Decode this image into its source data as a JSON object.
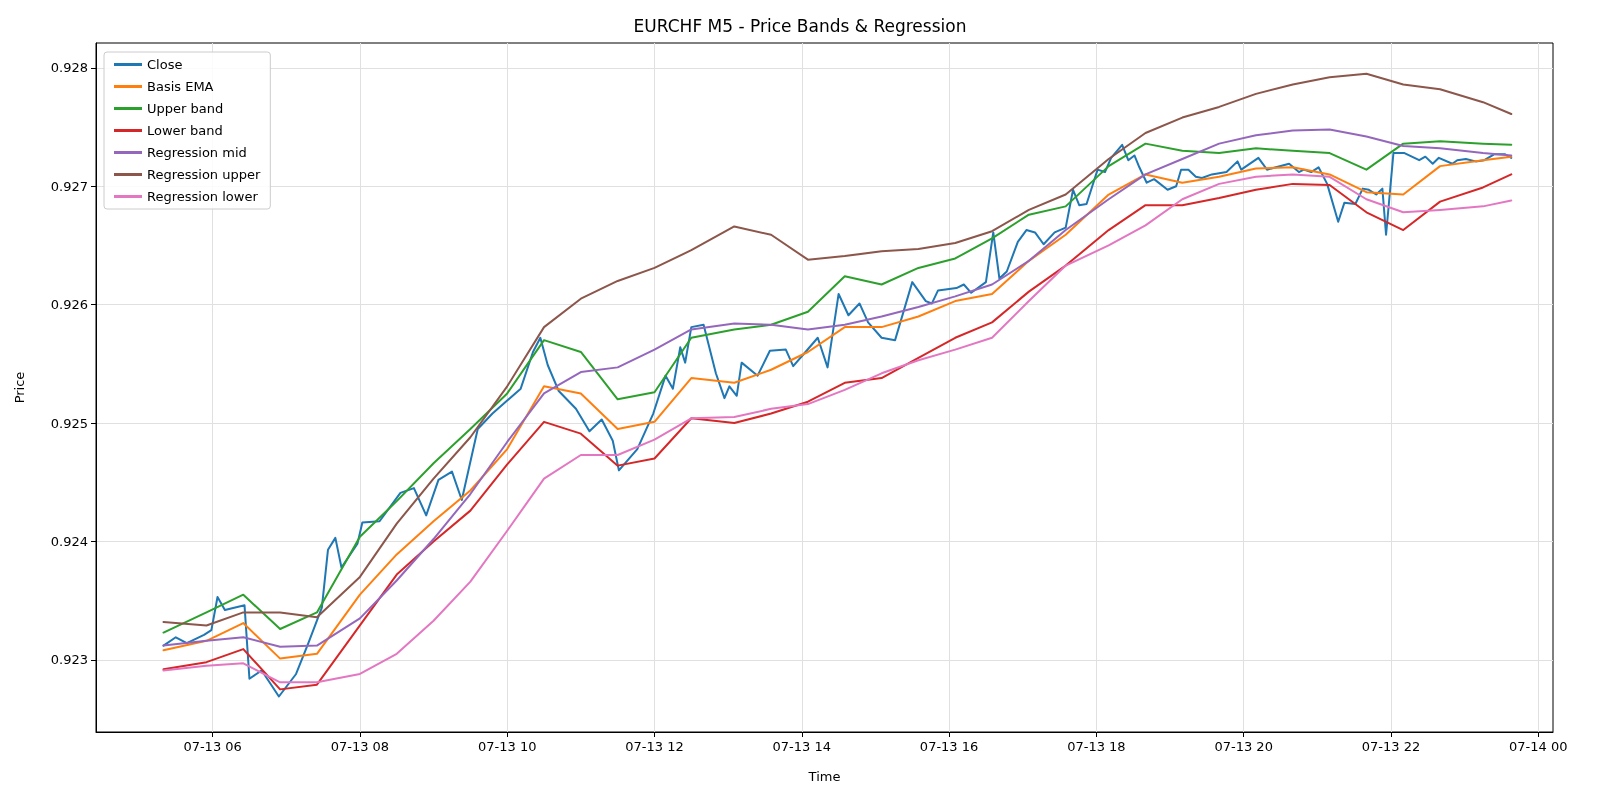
{
  "chart_data": {
    "type": "line",
    "title": "EURCHF M5 - Price Bands & Regression",
    "xlabel": "Time",
    "ylabel": "Price",
    "x": [
      "--07-13T05:20",
      "--07-13T05:55",
      "--07-13T06:25",
      "--07-13T06:55",
      "--07-13T07:25",
      "--07-13T08:00",
      "--07-13T08:30",
      "--07-13T09:00",
      "--07-13T09:30",
      "--07-13T10:00",
      "--07-13T10:30",
      "--07-13T11:00",
      "--07-13T11:30",
      "--07-13T12:00",
      "--07-13T12:30",
      "--07-13T13:05",
      "--07-13T13:35",
      "--07-13T14:05",
      "--07-13T14:35",
      "--07-13T15:05",
      "--07-13T15:35",
      "--07-13T16:05",
      "--07-13T16:35",
      "--07-13T17:05",
      "--07-13T17:35",
      "--07-13T18:10",
      "--07-13T18:40",
      "--07-13T19:10",
      "--07-13T19:40",
      "--07-13T20:10",
      "--07-13T20:40",
      "--07-13T21:10",
      "--07-13T21:40",
      "--07-13T22:10",
      "--07-13T22:40",
      "--07-13T23:15",
      "--07-13T23:38"
    ],
    "series": [
      {
        "name": "Close",
        "color": "#1f77b4",
        "x": [
          "--07-13T05:20",
          "--07-13T05:30",
          "--07-13T05:39",
          "--07-13T05:53",
          "--07-13T05:59",
          "--07-13T06:04",
          "--07-13T06:10",
          "--07-13T06:26",
          "--07-13T06:30",
          "--07-13T06:40",
          "--07-13T06:54",
          "--07-13T07:08",
          "--07-13T07:18",
          "--07-13T07:29",
          "--07-13T07:34",
          "--07-13T07:40",
          "--07-13T07:45",
          "--07-13T07:58",
          "--07-13T08:02",
          "--07-13T08:16",
          "--07-13T08:33",
          "--07-13T08:44",
          "--07-13T08:54",
          "--07-13T09:04",
          "--07-13T09:15",
          "--07-13T09:23",
          "--07-13T09:36",
          "--07-13T09:48",
          "--07-13T10:00",
          "--07-13T10:11",
          "--07-13T10:21",
          "--07-13T10:27",
          "--07-13T10:33",
          "--07-13T10:42",
          "--07-13T10:56",
          "--07-13T11:07",
          "--07-13T11:17",
          "--07-13T11:26",
          "--07-13T11:31",
          "--07-13T11:46",
          "--07-13T11:59",
          "--07-13T12:09",
          "--07-13T12:15",
          "--07-13T12:21",
          "--07-13T12:25",
          "--07-13T12:30",
          "--07-13T12:40",
          "--07-13T12:50",
          "--07-13T12:57",
          "--07-13T13:01",
          "--07-13T13:07",
          "--07-13T13:11",
          "--07-13T13:24",
          "--07-13T13:34",
          "--07-13T13:47",
          "--07-13T13:53",
          "--07-13T14:03",
          "--07-13T14:13",
          "--07-13T14:21",
          "--07-13T14:30",
          "--07-13T14:38",
          "--07-13T14:47",
          "--07-13T14:54",
          "--07-13T15:05",
          "--07-13T15:16",
          "--07-13T15:30",
          "--07-13T15:41",
          "--07-13T15:46",
          "--07-13T15:51",
          "--07-13T16:06",
          "--07-13T16:12",
          "--07-13T16:18",
          "--07-13T16:30",
          "--07-13T16:36",
          "--07-13T16:41",
          "--07-13T16:47",
          "--07-13T16:56",
          "--07-13T17:03",
          "--07-13T17:10",
          "--07-13T17:17",
          "--07-13T17:26",
          "--07-13T17:35",
          "--07-13T17:41",
          "--07-13T17:46",
          "--07-13T17:52",
          "--07-13T18:01",
          "--07-13T18:07",
          "--07-13T18:12",
          "--07-13T18:21",
          "--07-13T18:26",
          "--07-13T18:31",
          "--07-13T18:35",
          "--07-13T18:41",
          "--07-13T18:47",
          "--07-13T18:58",
          "--07-13T19:05",
          "--07-13T19:09",
          "--07-13T19:15",
          "--07-13T19:21",
          "--07-13T19:26",
          "--07-13T19:34",
          "--07-13T19:46",
          "--07-13T19:55",
          "--07-13T19:58",
          "--07-13T20:12",
          "--07-13T20:19",
          "--07-13T20:37",
          "--07-13T20:45",
          "--07-13T20:49",
          "--07-13T20:55",
          "--07-13T21:01",
          "--07-13T21:08",
          "--07-13T21:17",
          "--07-13T21:22",
          "--07-13T21:31",
          "--07-13T21:37",
          "--07-13T21:42",
          "--07-13T21:48",
          "--07-13T21:53",
          "--07-13T21:56",
          "--07-13T22:02",
          "--07-13T22:11",
          "--07-13T22:17",
          "--07-13T22:23",
          "--07-13T22:28",
          "--07-13T22:34",
          "--07-13T22:39",
          "--07-13T22:50",
          "--07-13T22:54",
          "--07-13T23:01",
          "--07-13T23:09",
          "--07-13T23:16",
          "--07-13T23:24",
          "--07-13T23:33",
          "--07-13T23:38"
        ],
        "values": [
          0.92312,
          0.92319,
          0.92314,
          0.92321,
          0.92325,
          0.92353,
          0.92342,
          0.92346,
          0.92284,
          0.92291,
          0.92269,
          0.92288,
          0.92314,
          0.92344,
          0.92393,
          0.92403,
          0.92378,
          0.92398,
          0.92416,
          0.92417,
          0.92441,
          0.92445,
          0.92422,
          0.92452,
          0.92459,
          0.92435,
          0.92495,
          0.92508,
          0.92519,
          0.92529,
          0.9256,
          0.92572,
          0.92549,
          0.92527,
          0.92512,
          0.92493,
          0.92503,
          0.92485,
          0.9246,
          0.92478,
          0.92508,
          0.9254,
          0.92529,
          0.92564,
          0.92551,
          0.92581,
          0.92583,
          0.92542,
          0.92521,
          0.92531,
          0.92523,
          0.92551,
          0.9254,
          0.92561,
          0.92562,
          0.92548,
          0.9256,
          0.92572,
          0.92547,
          0.92609,
          0.92591,
          0.92601,
          0.92585,
          0.92572,
          0.9257,
          0.92619,
          0.92603,
          0.92601,
          0.92612,
          0.92614,
          0.92617,
          0.9261,
          0.92619,
          0.92661,
          0.92622,
          0.92628,
          0.92653,
          0.92663,
          0.92661,
          0.92651,
          0.92661,
          0.92665,
          0.92697,
          0.92684,
          0.92685,
          0.92714,
          0.92712,
          0.92724,
          0.92735,
          0.92722,
          0.92726,
          0.92716,
          0.92703,
          0.92706,
          0.92697,
          0.927,
          0.92714,
          0.92714,
          0.92708,
          0.92707,
          0.9271,
          0.92712,
          0.92721,
          0.92714,
          0.92724,
          0.92714,
          0.92719,
          0.92712,
          0.92714,
          0.92712,
          0.92716,
          0.92702,
          0.9267,
          0.92686,
          0.92685,
          0.92698,
          0.92697,
          0.92693,
          0.92698,
          0.92659,
          0.92728,
          0.92728,
          0.92725,
          0.92722,
          0.92725,
          0.92719,
          0.92724,
          0.92719,
          0.92722,
          0.92723,
          0.92721,
          0.92722,
          0.92727,
          0.92727,
          0.92724
        ]
      },
      {
        "name": "Basis EMA",
        "color": "#ff7f0e",
        "values": [
          0.92308,
          0.92316,
          0.92331,
          0.92301,
          0.92305,
          0.92355,
          0.92389,
          0.92417,
          0.92443,
          0.92478,
          0.92531,
          0.92525,
          0.92495,
          0.92501,
          0.92538,
          0.92534,
          0.92545,
          0.9256,
          0.92581,
          0.92581,
          0.9259,
          0.92603,
          0.92609,
          0.92637,
          0.92659,
          0.92693,
          0.9271,
          0.92703,
          0.92708,
          0.92715,
          0.92716,
          0.9271,
          0.92695,
          0.92693,
          0.92717,
          0.92722,
          0.92725
        ]
      },
      {
        "name": "Upper band",
        "color": "#2ca02c",
        "values": [
          0.92323,
          0.9234,
          0.92355,
          0.92326,
          0.9234,
          0.92404,
          0.92434,
          0.92466,
          0.92495,
          0.92525,
          0.9257,
          0.9256,
          0.9252,
          0.92526,
          0.92572,
          0.92579,
          0.92583,
          0.92594,
          0.92624,
          0.92617,
          0.92631,
          0.92639,
          0.92656,
          0.92676,
          0.92683,
          0.92717,
          0.92736,
          0.9273,
          0.92728,
          0.92732,
          0.9273,
          0.92728,
          0.92714,
          0.92736,
          0.92738,
          0.92736,
          0.92735
        ]
      },
      {
        "name": "Lower band",
        "color": "#d62728",
        "values": [
          0.92292,
          0.92298,
          0.92309,
          0.92275,
          0.92279,
          0.92329,
          0.92372,
          0.924,
          0.92426,
          0.92465,
          0.92501,
          0.92491,
          0.92464,
          0.9247,
          0.92504,
          0.925,
          0.92508,
          0.92518,
          0.92534,
          0.92538,
          0.92555,
          0.92572,
          0.92585,
          0.92611,
          0.92633,
          0.92663,
          0.92684,
          0.92684,
          0.9269,
          0.92697,
          0.92702,
          0.92701,
          0.92678,
          0.92663,
          0.92687,
          0.92699,
          0.9271
        ]
      },
      {
        "name": "Regression mid",
        "color": "#9467bd",
        "values": [
          0.92312,
          0.92316,
          0.92319,
          0.92311,
          0.92312,
          0.92335,
          0.92367,
          0.92402,
          0.9244,
          0.92484,
          0.92525,
          0.92543,
          0.92547,
          0.92562,
          0.92579,
          0.92584,
          0.92583,
          0.92579,
          0.92583,
          0.9259,
          0.92598,
          0.92607,
          0.92617,
          0.92637,
          0.92663,
          0.92689,
          0.9271,
          0.92723,
          0.92736,
          0.92743,
          0.92747,
          0.92748,
          0.92742,
          0.92734,
          0.92732,
          0.92728,
          0.92726
        ]
      },
      {
        "name": "Regression upper",
        "color": "#8c564b",
        "values": [
          0.92332,
          0.92329,
          0.9234,
          0.9234,
          0.92336,
          0.9237,
          0.92415,
          0.92453,
          0.92488,
          0.92531,
          0.92581,
          0.92605,
          0.9262,
          0.92631,
          0.92646,
          0.92666,
          0.92659,
          0.92638,
          0.92641,
          0.92645,
          0.92647,
          0.92652,
          0.92662,
          0.9268,
          0.92693,
          0.92723,
          0.92745,
          0.92758,
          0.92767,
          0.92778,
          0.92786,
          0.92792,
          0.92795,
          0.92786,
          0.92782,
          0.92771,
          0.92761
        ]
      },
      {
        "name": "Regression lower",
        "color": "#e377c2",
        "values": [
          0.92291,
          0.92295,
          0.92297,
          0.92281,
          0.92281,
          0.92288,
          0.92305,
          0.92333,
          0.92366,
          0.92409,
          0.92453,
          0.92473,
          0.92473,
          0.92486,
          0.92504,
          0.92505,
          0.92512,
          0.92516,
          0.92528,
          0.92542,
          0.92553,
          0.92562,
          0.92572,
          0.92603,
          0.92633,
          0.9265,
          0.92667,
          0.92689,
          0.92702,
          0.92708,
          0.9271,
          0.92708,
          0.92689,
          0.92678,
          0.9268,
          0.92683,
          0.92688
        ]
      }
    ],
    "xlim": [
      "--07-13T04:25",
      "--07-14T00:12"
    ],
    "xticks": [
      {
        "value": "--07-13T06:00",
        "label": "07-13 06"
      },
      {
        "value": "--07-13T08:00",
        "label": "07-13 08"
      },
      {
        "value": "--07-13T10:00",
        "label": "07-13 10"
      },
      {
        "value": "--07-13T12:00",
        "label": "07-13 12"
      },
      {
        "value": "--07-13T14:00",
        "label": "07-13 14"
      },
      {
        "value": "--07-13T16:00",
        "label": "07-13 16"
      },
      {
        "value": "--07-13T18:00",
        "label": "07-13 18"
      },
      {
        "value": "--07-13T20:00",
        "label": "07-13 20"
      },
      {
        "value": "--07-13T22:00",
        "label": "07-13 22"
      },
      {
        "value": "--07-14T00:00",
        "label": "07-14 00"
      }
    ],
    "ylim": [
      0.92239,
      0.92821
    ],
    "yticks": [
      {
        "value": 0.923,
        "label": "0.923"
      },
      {
        "value": 0.924,
        "label": "0.924"
      },
      {
        "value": 0.925,
        "label": "0.925"
      },
      {
        "value": 0.926,
        "label": "0.926"
      },
      {
        "value": 0.927,
        "label": "0.927"
      },
      {
        "value": 0.928,
        "label": "0.928"
      }
    ],
    "grid": true,
    "legend": "top left",
    "marker": "none",
    "line_style": "solid"
  }
}
